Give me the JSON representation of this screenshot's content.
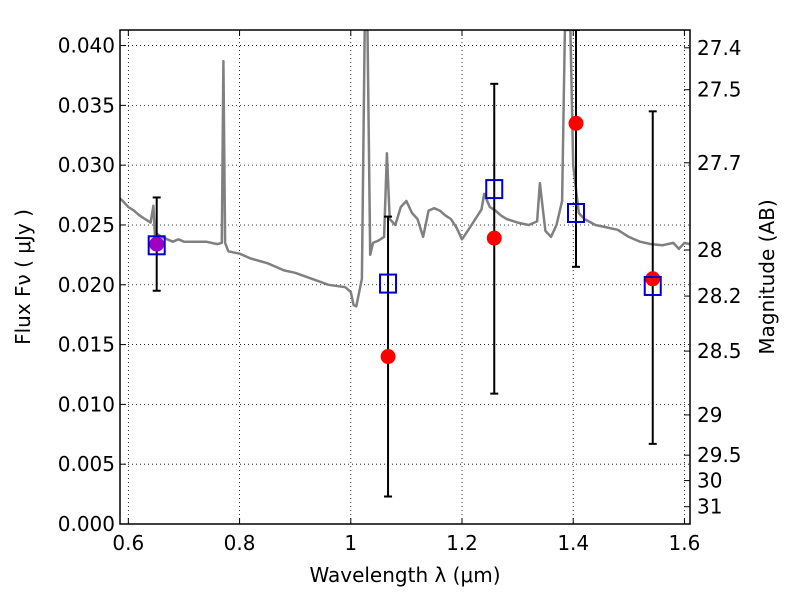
{
  "chart_data": {
    "type": "scatter",
    "xlabel": "Wavelength  λ (μm)",
    "ylabel": "Flux  Fν  ( μJy )",
    "y2label": "Magnitude (AB)",
    "xlim": [
      0.585,
      1.61
    ],
    "ylim": [
      0.0,
      0.0413
    ],
    "x_ticks": [
      0.6,
      0.8,
      1.0,
      1.2,
      1.4,
      1.6
    ],
    "x_tick_labels": [
      "0.6",
      "0.8",
      "1",
      "1.2",
      "1.4",
      "1.6"
    ],
    "y_ticks": [
      0.0,
      0.005,
      0.01,
      0.015,
      0.02,
      0.025,
      0.03,
      0.035,
      0.04
    ],
    "y_tick_labels": [
      "0.000",
      "0.005",
      "0.010",
      "0.015",
      "0.020",
      "0.025",
      "0.030",
      "0.035",
      "0.040"
    ],
    "y2_ticks": [
      {
        "label": "27.4",
        "mag": 27.4
      },
      {
        "label": "27.5",
        "mag": 27.5
      },
      {
        "label": "27.7",
        "mag": 27.7
      },
      {
        "label": "28",
        "mag": 28.0
      },
      {
        "label": "28.2",
        "mag": 28.2
      },
      {
        "label": "28.5",
        "mag": 28.5
      },
      {
        "label": "29",
        "mag": 29.0
      },
      {
        "label": "29.5",
        "mag": 29.5
      },
      {
        "label": "30",
        "mag": 30.0
      },
      {
        "label": "31",
        "mag": 31.0
      }
    ],
    "grid": true,
    "colors": {
      "spectrum": "#808080",
      "observed": "#ff0000",
      "observed_overlap": "#a000c0",
      "model": "#0000cc",
      "errorbar": "#000000"
    },
    "series": [
      {
        "kind": "line",
        "points": [
          [
            0.585,
            0.0272
          ],
          [
            0.59,
            0.027
          ],
          [
            0.6,
            0.0265
          ],
          [
            0.61,
            0.0262
          ],
          [
            0.62,
            0.0258
          ],
          [
            0.63,
            0.0255
          ],
          [
            0.64,
            0.0252
          ],
          [
            0.645,
            0.0266
          ],
          [
            0.648,
            0.024
          ],
          [
            0.65,
            0.0243
          ],
          [
            0.66,
            0.024
          ],
          [
            0.67,
            0.0238
          ],
          [
            0.68,
            0.0236
          ],
          [
            0.69,
            0.0238
          ],
          [
            0.7,
            0.0236
          ],
          [
            0.72,
            0.0236
          ],
          [
            0.74,
            0.0236
          ],
          [
            0.76,
            0.0234
          ],
          [
            0.768,
            0.0235
          ],
          [
            0.771,
            0.0387
          ],
          [
            0.774,
            0.0235
          ],
          [
            0.78,
            0.0228
          ],
          [
            0.8,
            0.0226
          ],
          [
            0.82,
            0.0222
          ],
          [
            0.85,
            0.0218
          ],
          [
            0.88,
            0.0212
          ],
          [
            0.9,
            0.021
          ],
          [
            0.93,
            0.0205
          ],
          [
            0.96,
            0.02
          ],
          [
            0.99,
            0.0198
          ],
          [
            1.0,
            0.0194
          ],
          [
            1.005,
            0.0183
          ],
          [
            1.01,
            0.0182
          ],
          [
            1.02,
            0.0205
          ],
          [
            1.025,
            0.0413
          ],
          [
            1.03,
            0.0413
          ],
          [
            1.035,
            0.0225
          ],
          [
            1.04,
            0.0235
          ],
          [
            1.05,
            0.0237
          ],
          [
            1.06,
            0.024
          ],
          [
            1.065,
            0.031
          ],
          [
            1.07,
            0.0255
          ],
          [
            1.08,
            0.025
          ],
          [
            1.09,
            0.0265
          ],
          [
            1.1,
            0.027
          ],
          [
            1.11,
            0.026
          ],
          [
            1.12,
            0.0255
          ],
          [
            1.13,
            0.024
          ],
          [
            1.14,
            0.0262
          ],
          [
            1.15,
            0.0264
          ],
          [
            1.16,
            0.0262
          ],
          [
            1.17,
            0.0258
          ],
          [
            1.18,
            0.0255
          ],
          [
            1.19,
            0.0248
          ],
          [
            1.2,
            0.0238
          ],
          [
            1.21,
            0.0245
          ],
          [
            1.22,
            0.0252
          ],
          [
            1.235,
            0.0263
          ],
          [
            1.24,
            0.0276
          ],
          [
            1.25,
            0.0265
          ],
          [
            1.26,
            0.0262
          ],
          [
            1.27,
            0.0258
          ],
          [
            1.28,
            0.0255
          ],
          [
            1.3,
            0.0252
          ],
          [
            1.32,
            0.025
          ],
          [
            1.335,
            0.0253
          ],
          [
            1.34,
            0.0285
          ],
          [
            1.345,
            0.0265
          ],
          [
            1.35,
            0.0245
          ],
          [
            1.36,
            0.024
          ],
          [
            1.37,
            0.025
          ],
          [
            1.38,
            0.027
          ],
          [
            1.385,
            0.0413
          ],
          [
            1.395,
            0.0413
          ],
          [
            1.4,
            0.03
          ],
          [
            1.41,
            0.026
          ],
          [
            1.42,
            0.0255
          ],
          [
            1.44,
            0.025
          ],
          [
            1.46,
            0.0248
          ],
          [
            1.48,
            0.0246
          ],
          [
            1.5,
            0.024
          ],
          [
            1.52,
            0.0236
          ],
          [
            1.54,
            0.0234
          ],
          [
            1.56,
            0.0233
          ],
          [
            1.58,
            0.0235
          ],
          [
            1.59,
            0.023
          ],
          [
            1.6,
            0.0235
          ],
          [
            1.61,
            0.0234
          ]
        ]
      },
      {
        "kind": "points",
        "points": [
          {
            "x": 0.651,
            "y": 0.0234,
            "err_low": 0.0195,
            "err_high": 0.0273,
            "overlap": true
          },
          {
            "x": 1.067,
            "y": 0.014,
            "err_low": 0.0023,
            "err_high": 0.0257,
            "overlap": false
          },
          {
            "x": 1.258,
            "y": 0.0239,
            "err_low": 0.0109,
            "err_high": 0.0368,
            "overlap": false
          },
          {
            "x": 1.405,
            "y": 0.0335,
            "err_low": 0.0215,
            "err_high": 0.0413,
            "overlap": false
          },
          {
            "x": 1.543,
            "y": 0.0205,
            "err_low": 0.0067,
            "err_high": 0.0345,
            "overlap": false
          }
        ]
      },
      {
        "kind": "squares",
        "points": [
          {
            "x": 0.651,
            "y": 0.0233
          },
          {
            "x": 1.067,
            "y": 0.0201
          },
          {
            "x": 1.258,
            "y": 0.028
          },
          {
            "x": 1.405,
            "y": 0.026
          },
          {
            "x": 1.543,
            "y": 0.0199
          }
        ]
      }
    ]
  }
}
